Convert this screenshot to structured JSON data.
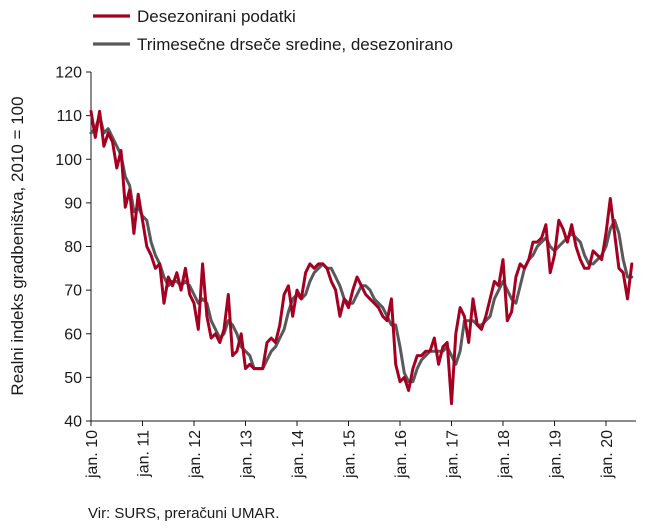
{
  "chart_data": {
    "type": "line",
    "ylabel": "Realni indeks gradbeništva, 2010 = 100",
    "xlabel": "",
    "ylim": [
      40,
      120
    ],
    "yticks": [
      40,
      50,
      60,
      70,
      80,
      90,
      100,
      110,
      120
    ],
    "x_start": "2010-01",
    "xtick_labels": [
      "jan. 10",
      "jan. 11",
      "jan. 12",
      "jan. 13",
      "jan. 14",
      "jan. 15",
      "jan. 16",
      "jan. 17",
      "jan. 18",
      "jan. 19",
      "jan. 20"
    ],
    "legend_position": "top-left",
    "grid": false,
    "series": [
      {
        "name": "Desezonirani podatki",
        "color": "#a50021",
        "values": [
          111,
          105,
          111,
          103,
          106,
          104,
          98,
          102,
          89,
          93,
          83,
          92,
          86,
          80,
          78,
          75,
          76,
          67,
          73,
          71,
          74,
          70,
          75,
          69,
          67,
          61,
          76,
          64,
          59,
          60,
          58,
          61,
          69,
          55,
          56,
          60,
          52,
          53,
          52,
          52,
          52,
          58,
          59,
          58,
          62,
          69,
          71,
          64,
          70,
          68,
          74,
          76,
          75,
          76,
          76,
          75,
          72,
          70,
          64,
          68,
          66,
          70,
          73,
          71,
          69,
          68,
          67,
          66,
          64,
          63,
          68,
          53,
          49,
          50,
          47,
          52,
          55,
          55,
          56,
          56,
          59,
          53,
          57,
          58,
          44,
          60,
          66,
          64,
          58,
          68,
          62,
          61,
          64,
          68,
          72,
          71,
          77,
          63,
          65,
          73,
          76,
          75,
          77,
          81,
          81,
          82,
          85,
          74,
          78,
          86,
          84,
          81,
          85,
          80,
          77,
          75,
          75,
          79,
          78,
          77,
          83,
          91,
          83,
          75,
          74,
          68,
          76
        ]
      },
      {
        "name": "Trimesečne drseče sredine, desezonirano",
        "color": "#595959",
        "values": [
          106,
          107,
          110,
          106,
          107,
          105,
          103,
          101,
          96,
          94,
          88,
          89,
          87,
          86,
          81,
          78,
          76,
          73,
          71,
          72,
          72,
          71,
          72,
          71,
          69,
          67,
          68,
          67,
          63,
          61,
          59,
          60,
          63,
          62,
          60,
          57,
          56,
          55,
          52,
          52,
          52,
          54,
          56,
          57,
          59,
          61,
          65,
          68,
          69,
          68,
          69,
          72,
          74,
          75,
          76,
          75,
          75,
          73,
          71,
          68,
          67,
          67,
          69,
          71,
          71,
          70,
          68,
          67,
          66,
          64,
          62,
          62,
          57,
          51,
          49,
          49,
          52,
          54,
          55,
          56,
          56,
          56,
          56,
          57,
          55,
          53,
          56,
          63,
          63,
          63,
          62,
          62,
          63,
          64,
          68,
          70,
          72,
          70,
          68,
          67,
          71,
          75,
          77,
          78,
          80,
          81,
          82,
          80,
          79,
          80,
          81,
          82,
          83,
          82,
          81,
          78,
          76,
          76,
          77,
          78,
          80,
          84,
          86,
          83,
          77,
          73,
          73
        ]
      }
    ]
  },
  "footer": {
    "source": "Vir: SURS, preračuni UMAR."
  }
}
